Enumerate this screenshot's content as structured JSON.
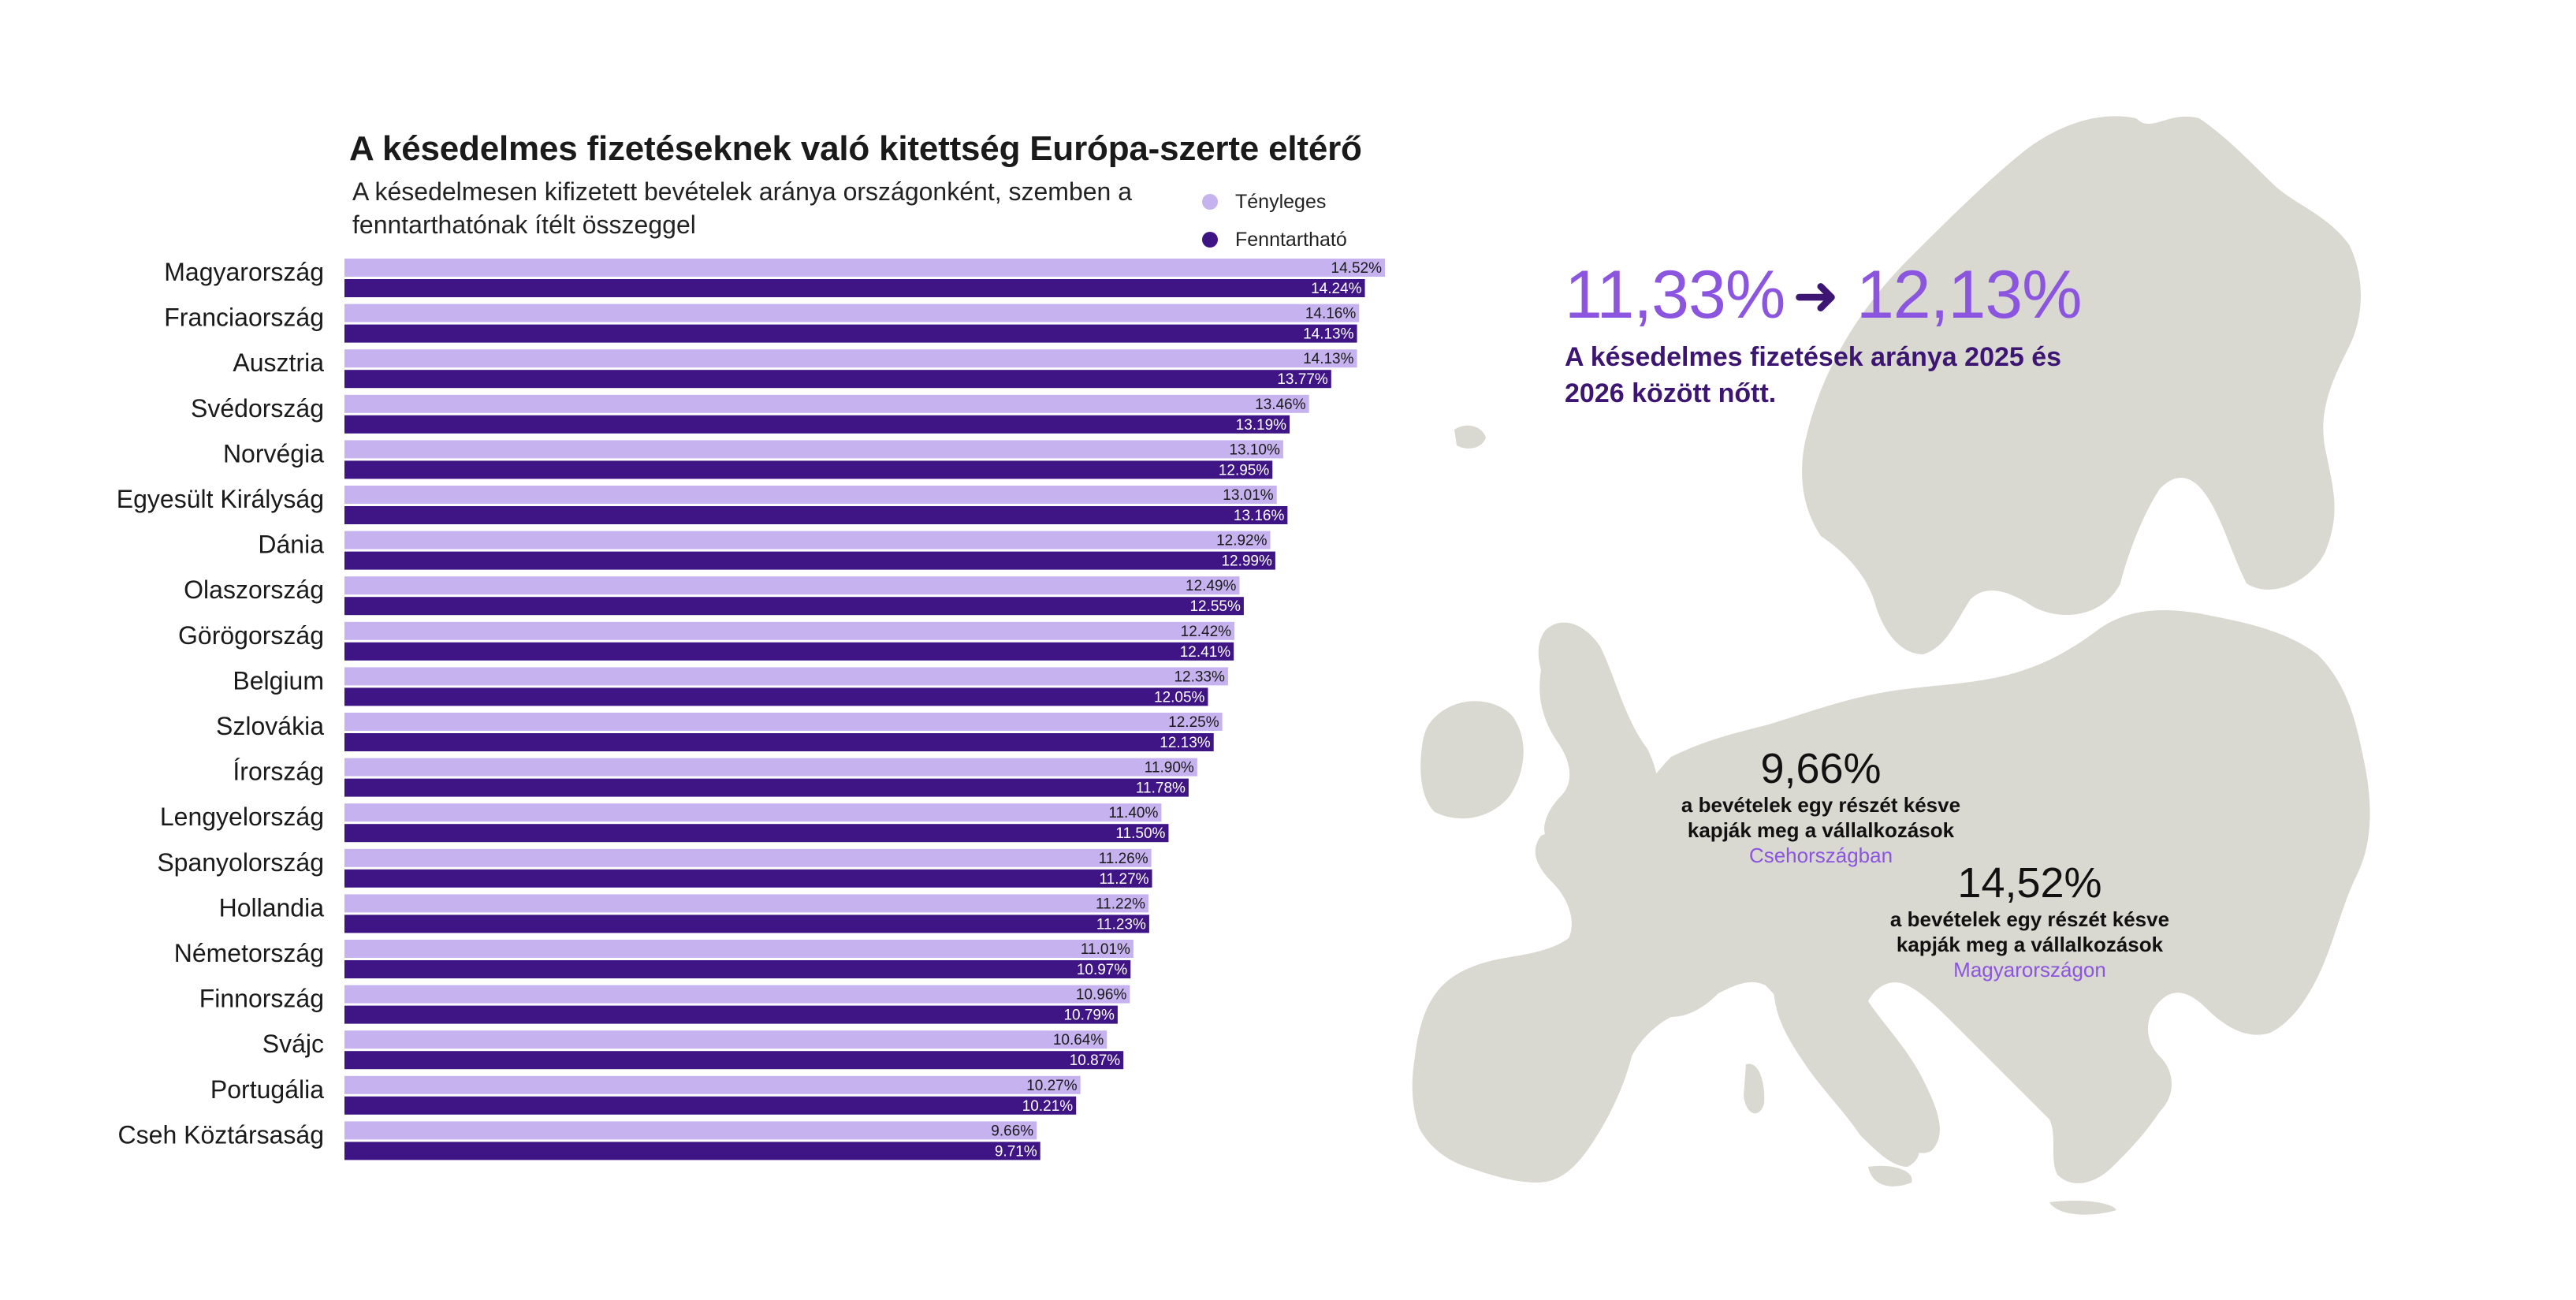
{
  "header": {
    "title": "A késedelmes fizetéseknek való kitettség Európa-szerte eltérő",
    "subtitle": "A késedelmesen kifizetett bevételek aránya országonként, szemben a fenntarthatónak ítélt összeggel"
  },
  "legend": {
    "actual_label": "Tényleges",
    "sustainable_label": "Fenntartható"
  },
  "colors": {
    "actual": "#c6b2ef",
    "sustainable": "#3f1485",
    "accent": "#8b55e0",
    "dark": "#3c1672",
    "map": "#d9d8d1"
  },
  "chart_data": {
    "type": "bar",
    "orientation": "horizontal",
    "title": "A késedelmes fizetéseknek való kitettség Európa-szerte eltérő",
    "subtitle": "A késedelmesen kifizetett bevételek aránya országonként, szemben a fenntarthatónak ítélt összeggel",
    "categories": [
      "Magyarország",
      "Franciaország",
      "Ausztria",
      "Svédország",
      "Norvégia",
      "Egyesült Királyság",
      "Dánia",
      "Olaszország",
      "Görögország",
      "Belgium",
      "Szlovákia",
      "Írország",
      "Lengyelország",
      "Spanyolország",
      "Hollandia",
      "Németország",
      "Finnország",
      "Svájc",
      "Portugália",
      "Cseh Köztársaság"
    ],
    "series": [
      {
        "name": "Tényleges",
        "values": [
          14.52,
          14.16,
          14.13,
          13.46,
          13.1,
          13.01,
          12.92,
          12.49,
          12.42,
          12.33,
          12.25,
          11.9,
          11.4,
          11.26,
          11.22,
          11.01,
          10.96,
          10.64,
          10.27,
          9.66
        ],
        "labels": [
          "14.52%",
          "14.16%",
          "14.13%",
          "13.46%",
          "13.10%",
          "13.01%",
          "12.92%",
          "12.49%",
          "12.42%",
          "12.33%",
          "12.25%",
          "11.90%",
          "11.40%",
          "11.26%",
          "11.22%",
          "11.01%",
          "10.96%",
          "10.64%",
          "10.27%",
          "9.66%"
        ]
      },
      {
        "name": "Fenntartható",
        "values": [
          14.24,
          14.13,
          13.77,
          13.19,
          12.95,
          13.16,
          12.99,
          12.55,
          12.41,
          12.05,
          12.13,
          11.78,
          11.5,
          11.27,
          11.23,
          10.97,
          10.79,
          10.87,
          10.21,
          9.71
        ],
        "labels": [
          "14.24%",
          "14.13%",
          "13.77%",
          "13.19%",
          "12.95%",
          "13.16%",
          "12.99%",
          "12.55%",
          "12.41%",
          "12.05%",
          "12.13%",
          "11.78%",
          "11.50%",
          "11.27%",
          "11.23%",
          "10.97%",
          "10.79%",
          "10.87%",
          "10.21%",
          "9.71%"
        ]
      }
    ],
    "xlim": [
      0,
      14.52
    ]
  },
  "kpi": {
    "from": "11,33%",
    "to": "12,13%",
    "text": "A késedelmes fizetések aránya 2025 és 2026 között nőtt."
  },
  "callouts": {
    "czech": {
      "value": "9,66%",
      "line1": "a bevételek egy részét késve",
      "line2": "kapják meg a vállalkozások",
      "country": "Csehországban"
    },
    "hungary": {
      "value": "14,52%",
      "line1": "a bevételek egy részét késve",
      "line2": "kapják meg a vállalkozások",
      "country": "Magyarországon"
    }
  }
}
